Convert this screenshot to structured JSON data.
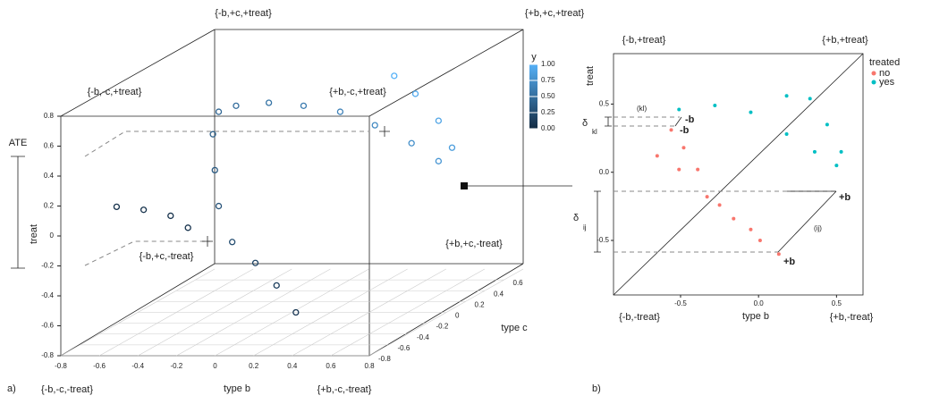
{
  "chart_data": [
    {
      "type": "scatter3d",
      "panel_label": "a)",
      "annotation": "ATE",
      "xlabel": "type b",
      "ylabel": "treat",
      "zlabel": "type c",
      "corner_labels": [
        "{-b,+c,+treat}",
        "{+b,+c,+treat}",
        "{-b,-c,+treat}",
        "{+b,-c,+treat}",
        "{-b,+c,-treat}",
        "{+b,+c,-treat}",
        "{-b,-c,-treat}",
        "{+b,-c,-treat}"
      ],
      "xlim": [
        -0.8,
        0.8
      ],
      "ylim": [
        -0.8,
        0.8
      ],
      "zlim": [
        -0.8,
        0.8
      ],
      "xticks": [
        -0.8,
        -0.6,
        -0.4,
        -0.2,
        0,
        0.2,
        0.4,
        0.6,
        0.8
      ],
      "yticks": [
        -0.8,
        -0.6,
        -0.4,
        -0.2,
        0,
        0.2,
        0.4,
        0.6,
        0.8
      ],
      "zticks": [
        -0.8,
        -0.6,
        -0.4,
        -0.2,
        0,
        0.2,
        0.4,
        0.6
      ],
      "grid": true,
      "color_title": "y",
      "low_color": "#132b43",
      "high_color": "#56b1f7",
      "color_ticks": [
        {
          "value": 0,
          "label": "0.00"
        },
        {
          "value": 0.25,
          "label": "0.25"
        },
        {
          "value": 0.5,
          "label": "0.50"
        },
        {
          "value": 0.75,
          "label": "0.75"
        },
        {
          "value": 1,
          "label": "1.00"
        }
      ],
      "x": [
        -0.71,
        -0.57,
        -0.43,
        -0.34,
        0.02,
        -0.08,
        -0.19,
        -0.31,
        -0.38,
        -0.4,
        -0.41,
        -0.38,
        -0.29,
        -0.12,
        0.06,
        0.25,
        0.43,
        0.62,
        0.76,
        0.83,
        0.76,
        0.64,
        0.53
      ],
      "z": [
        -0.4,
        -0.4,
        -0.4,
        -0.4,
        0,
        0,
        0,
        0,
        0,
        0,
        0,
        0,
        0,
        0,
        0,
        0,
        0,
        0,
        0,
        0,
        0,
        0,
        0
      ],
      "y": [
        0.05,
        0.03,
        -0.01,
        -0.09,
        -0.8,
        -0.62,
        -0.47,
        -0.33,
        -0.09,
        0.15,
        0.39,
        0.54,
        0.58,
        0.6,
        0.58,
        0.54,
        0.45,
        0.33,
        0.21,
        0.3,
        0.48,
        0.66,
        0.78
      ],
      "c": [
        0.05,
        0.05,
        0.05,
        0.05,
        0.1,
        0.15,
        0.2,
        0.25,
        0.3,
        0.35,
        0.4,
        0.45,
        0.5,
        0.55,
        0.6,
        0.65,
        0.7,
        0.75,
        0.8,
        0.85,
        0.9,
        0.95,
        1
      ]
    },
    {
      "type": "scatter",
      "panel_label": "b)",
      "xlabel": "type b",
      "ylabel": "treat",
      "corner_labels": [
        "{-b,+treat}",
        "{+b,+treat}",
        "{-b,-treat}",
        "{+b,-treat}"
      ],
      "annotations": [
        "(kl)",
        "(ij)",
        "-b",
        "-b",
        "+b",
        "+b",
        "δ",
        "kl",
        "δ",
        "ij"
      ],
      "xlim": [
        -0.93,
        0.67
      ],
      "ylim": [
        -0.9,
        0.87
      ],
      "xticks": [
        -0.5,
        {
          "value": 0,
          "label": "0.0"
        },
        0.5
      ],
      "yticks": [
        0.5,
        {
          "value": 0,
          "label": "0.0"
        },
        -0.5
      ],
      "legend_title": "treated",
      "series": [
        {
          "name": "no",
          "color": "#f8766d",
          "x": [
            -0.65,
            -0.51,
            -0.33,
            -0.16,
            0.01,
            0.13,
            -0.56,
            -0.48,
            -0.39,
            -0.25,
            -0.05
          ],
          "y": [
            0.12,
            0.02,
            -0.18,
            -0.34,
            -0.5,
            -0.6,
            0.31,
            0.18,
            0.02,
            -0.24,
            -0.42
          ]
        },
        {
          "name": "yes",
          "color": "#00bfc4",
          "x": [
            -0.51,
            -0.28,
            -0.05,
            0.18,
            0.36,
            0.5,
            0.53,
            0.44,
            0.33,
            0.18
          ],
          "y": [
            0.46,
            0.49,
            0.44,
            0.28,
            0.15,
            0.05,
            0.15,
            0.35,
            0.54,
            0.56
          ]
        }
      ]
    }
  ]
}
